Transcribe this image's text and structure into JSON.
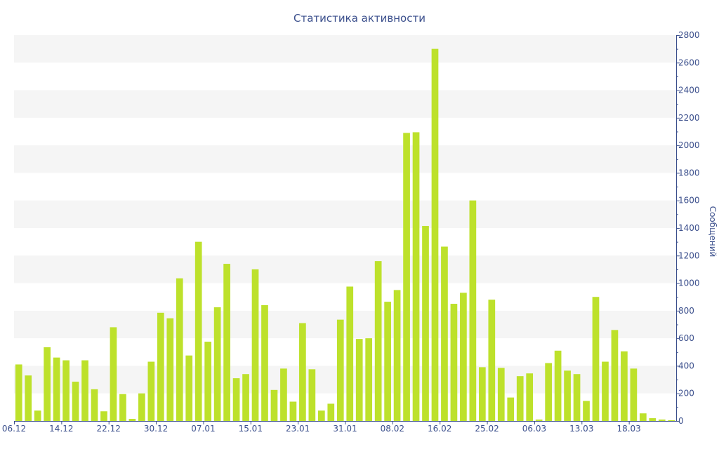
{
  "chart_data": {
    "type": "bar",
    "title": "Статистика активности",
    "xlabel": "",
    "ylabel": "Сообщений",
    "ylim": [
      0,
      2800
    ],
    "y_ticks": [
      0,
      200,
      400,
      600,
      800,
      1000,
      1200,
      1400,
      1600,
      1800,
      2000,
      2200,
      2400,
      2600,
      2800
    ],
    "x_tick_labels": [
      "06.12",
      "14.12",
      "22.12",
      "30.12",
      "07.01",
      "15.01",
      "23.01",
      "31.01",
      "08.02",
      "16.02",
      "25.02",
      "06.03",
      "13.03",
      "18.03"
    ],
    "x_tick_indices": [
      0,
      5,
      10,
      15,
      20,
      25,
      30,
      35,
      40,
      45,
      50,
      55,
      60,
      65
    ],
    "y_axis_side": "right",
    "grid": "alternating horizontal bands",
    "legend": "none",
    "colors": {
      "bar": "#bde12b",
      "axis": "#3b4f8c",
      "band": "#f5f5f5"
    },
    "values": [
      410,
      330,
      75,
      535,
      460,
      440,
      285,
      440,
      230,
      70,
      680,
      195,
      15,
      200,
      430,
      785,
      745,
      1035,
      475,
      1300,
      575,
      825,
      1140,
      310,
      340,
      1100,
      840,
      225,
      380,
      140,
      710,
      375,
      75,
      125,
      735,
      975,
      595,
      600,
      1160,
      865,
      950,
      2090,
      2095,
      1415,
      2700,
      1265,
      850,
      930,
      1600,
      390,
      880,
      385,
      170,
      325,
      345,
      10,
      420,
      510,
      365,
      340,
      145,
      900,
      430,
      660,
      505,
      380,
      55,
      20,
      10,
      5
    ]
  }
}
